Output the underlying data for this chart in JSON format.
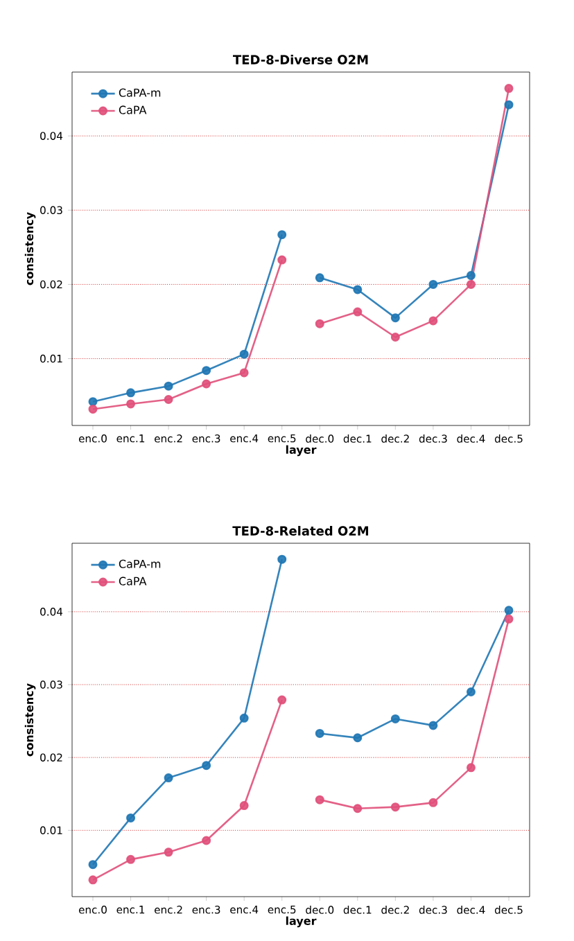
{
  "chart_data": [
    {
      "type": "line",
      "title": "TED-8-Diverse O2M",
      "xlabel": "layer",
      "ylabel": "consistency",
      "categories": [
        "enc.0",
        "enc.1",
        "enc.2",
        "enc.3",
        "enc.4",
        "enc.5",
        "dec.0",
        "dec.1",
        "dec.2",
        "dec.3",
        "dec.4",
        "dec.5"
      ],
      "series": [
        {
          "name": "CaPA-m",
          "color": "#1f77b4",
          "x": [
            "enc.0",
            "enc.1",
            "enc.2",
            "enc.3",
            "enc.4",
            "enc.5"
          ],
          "values": [
            0.0042,
            0.0054,
            0.0063,
            0.0084,
            0.0106,
            0.0267
          ]
        },
        {
          "name": "CaPA",
          "color": "#e0507a",
          "x": [
            "enc.0",
            "enc.1",
            "enc.2",
            "enc.3",
            "enc.4",
            "enc.5"
          ],
          "values": [
            0.0032,
            0.0039,
            0.0045,
            0.0066,
            0.0081,
            0.0233
          ]
        },
        {
          "color": "#1f77b4",
          "x": [
            "dec.0",
            "dec.1",
            "dec.2",
            "dec.3",
            "dec.4",
            "dec.5"
          ],
          "values": [
            0.0209,
            0.0193,
            0.0155,
            0.02,
            0.0212,
            0.0442
          ]
        },
        {
          "color": "#e0507a",
          "x": [
            "dec.0",
            "dec.1",
            "dec.2",
            "dec.3",
            "dec.4",
            "dec.5"
          ],
          "values": [
            0.0147,
            0.0163,
            0.0129,
            0.0151,
            0.02,
            0.0464
          ]
        }
      ],
      "ylim": [
        0.001,
        0.0486
      ],
      "yticks": [
        0.01,
        0.02,
        0.03,
        0.04
      ],
      "grid": "y",
      "legend": "top left",
      "marker": "circle",
      "line_style": "solid"
    },
    {
      "type": "line",
      "title": "TED-8-Related O2M",
      "xlabel": "layer",
      "ylabel": "consistency",
      "categories": [
        "enc.0",
        "enc.1",
        "enc.2",
        "enc.3",
        "enc.4",
        "enc.5",
        "dec.0",
        "dec.1",
        "dec.2",
        "dec.3",
        "dec.4",
        "dec.5"
      ],
      "series": [
        {
          "name": "CaPA-m",
          "color": "#1f77b4",
          "x": [
            "enc.0",
            "enc.1",
            "enc.2",
            "enc.3",
            "enc.4",
            "enc.5"
          ],
          "values": [
            0.0053,
            0.0117,
            0.0172,
            0.0189,
            0.0254,
            0.0472
          ]
        },
        {
          "name": "CaPA",
          "color": "#e0507a",
          "x": [
            "enc.0",
            "enc.1",
            "enc.2",
            "enc.3",
            "enc.4",
            "enc.5"
          ],
          "values": [
            0.0032,
            0.006,
            0.007,
            0.0086,
            0.0134,
            0.0279
          ]
        },
        {
          "color": "#1f77b4",
          "x": [
            "dec.0",
            "dec.1",
            "dec.2",
            "dec.3",
            "dec.4",
            "dec.5"
          ],
          "values": [
            0.0233,
            0.0227,
            0.0253,
            0.0244,
            0.029,
            0.0402
          ]
        },
        {
          "color": "#e0507a",
          "x": [
            "dec.0",
            "dec.1",
            "dec.2",
            "dec.3",
            "dec.4",
            "dec.5"
          ],
          "values": [
            0.0142,
            0.013,
            0.0132,
            0.0138,
            0.0186,
            0.039
          ]
        }
      ],
      "ylim": [
        0.0009,
        0.0494
      ],
      "yticks": [
        0.01,
        0.02,
        0.03,
        0.04
      ],
      "grid": "y",
      "legend": "top left",
      "marker": "circle",
      "line_style": "solid"
    }
  ]
}
